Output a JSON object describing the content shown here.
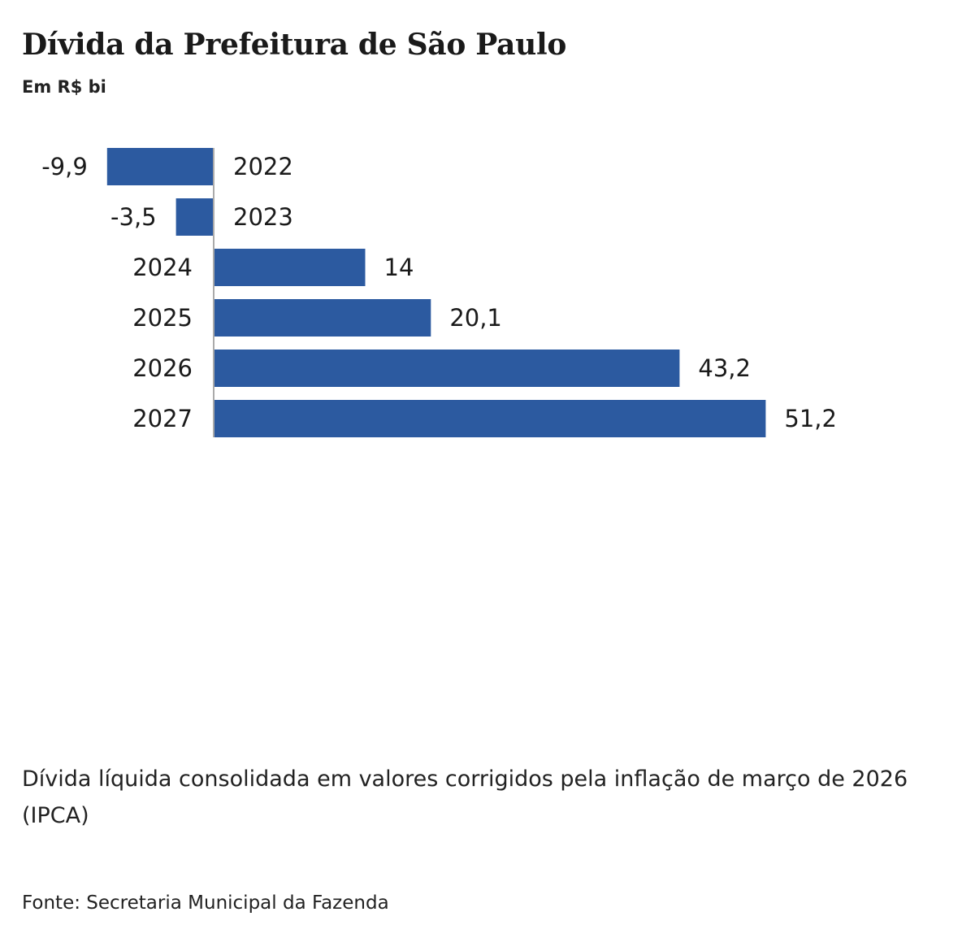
{
  "header": {
    "title": "Dívida da Prefeitura de São Paulo",
    "subtitle": "Em R$ bi"
  },
  "chart_data": {
    "type": "bar",
    "orientation": "horizontal",
    "categories": [
      "2022",
      "2023",
      "2024",
      "2025",
      "2026",
      "2027"
    ],
    "values": [
      -9.9,
      -3.5,
      14,
      20.1,
      43.2,
      51.2
    ],
    "value_labels": [
      "-9,9",
      "-3,5",
      "14",
      "20,1",
      "43,2",
      "51,2"
    ],
    "bar_color": "#2c5aa0",
    "axis_color": "#aaaaaa",
    "grid": false
  },
  "footer": {
    "note": "Dívida líquida consolidada em valores corrigidos pela inflação de março de 2026 (IPCA)",
    "source": "Fonte: Secretaria Municipal da Fazenda"
  }
}
